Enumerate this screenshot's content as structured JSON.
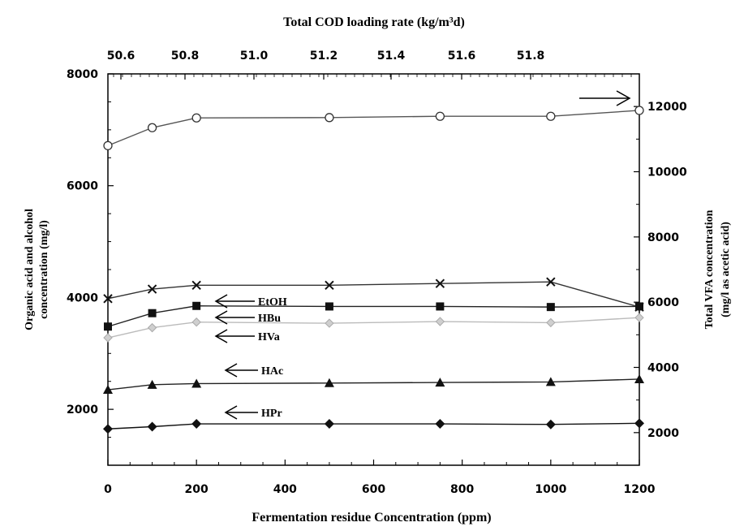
{
  "chart_data": {
    "type": "line",
    "top_axis_label": "Total COD loading rate (kg/m³d)",
    "top_ticks": [
      "50.6",
      "50.8",
      "51.0",
      "51.2",
      "51.4",
      "51.6",
      "51.8"
    ],
    "xlabel": "Fermentation residue Concentration (ppm)",
    "ylabel_left": [
      "Organic acid and alcohol",
      "concentration (mg/l)"
    ],
    "ylabel_right": [
      "Total VFA concentration",
      "(mg/l as acetic acid)"
    ],
    "xlim": [
      0,
      1200
    ],
    "ylim_left": [
      1000,
      8000
    ],
    "ylim_right": [
      1000,
      13000
    ],
    "x_ticks": [
      0,
      200,
      400,
      600,
      800,
      1000,
      1200
    ],
    "y_ticks_left": [
      2000,
      4000,
      6000,
      8000
    ],
    "y_ticks_right": [
      2000,
      4000,
      6000,
      8000,
      10000,
      12000
    ],
    "x": [
      0,
      100,
      200,
      500,
      750,
      1000,
      1200
    ],
    "series": [
      {
        "name": "Total VFA",
        "axis": "right",
        "marker": "circle",
        "color": "#555555",
        "values": [
          10800,
          11350,
          11650,
          11660,
          11700,
          11700,
          11880
        ]
      },
      {
        "name": "EtOH",
        "axis": "left",
        "marker": "x",
        "color": "#333333",
        "values": [
          3980,
          4150,
          4220,
          4220,
          4250,
          4280,
          3830
        ]
      },
      {
        "name": "HBu",
        "axis": "left",
        "marker": "square",
        "color": "#222222",
        "values": [
          3480,
          3720,
          3850,
          3840,
          3840,
          3830,
          3840
        ]
      },
      {
        "name": "HVa",
        "axis": "left",
        "marker": "diamond-light",
        "color": "#bbbbbb",
        "values": [
          3280,
          3460,
          3560,
          3540,
          3570,
          3550,
          3640
        ]
      },
      {
        "name": "HAc",
        "axis": "left",
        "marker": "triangle",
        "color": "#222222",
        "values": [
          2350,
          2440,
          2460,
          2470,
          2480,
          2490,
          2540
        ]
      },
      {
        "name": "HPr",
        "axis": "left",
        "marker": "diamond",
        "color": "#111111",
        "values": [
          1650,
          1690,
          1740,
          1740,
          1740,
          1730,
          1750
        ]
      }
    ],
    "grid": false,
    "legend": "inline arrow labels"
  }
}
